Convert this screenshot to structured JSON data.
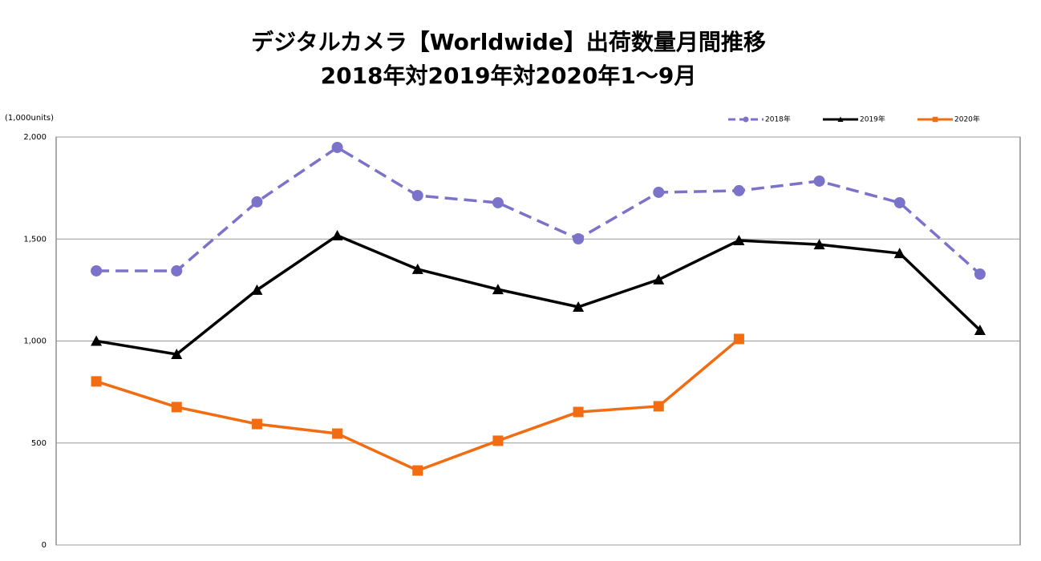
{
  "chart_data": {
    "type": "line",
    "title": "デジタルカメラ【Worldwide】出荷数量月間推移",
    "subtitle": "2018年対2019年対2020年1～9月",
    "y_label": "(1,000units)",
    "categories": [
      null,
      null,
      null,
      null,
      null,
      null,
      null,
      null,
      null,
      null,
      null,
      null
    ],
    "series": [
      {
        "name": "2018年",
        "color": "#7b72c9",
        "dash": true,
        "marker": "circle",
        "values": [
          1344,
          1344,
          1682,
          1949,
          1713,
          1678,
          1501,
          1729,
          1737,
          1784,
          1678,
          1328
        ]
      },
      {
        "name": "2019年",
        "color": "#000000",
        "dash": false,
        "marker": "triangle",
        "values": [
          1000,
          935,
          1250,
          1517,
          1352,
          1253,
          1167,
          1301,
          1493,
          1473,
          1430,
          1053
        ]
      },
      {
        "name": "2020年",
        "color": "#f26c12",
        "dash": false,
        "marker": "square",
        "values": [
          802,
          676,
          593,
          546,
          365,
          511,
          652,
          680,
          1010,
          null,
          null,
          null
        ]
      }
    ],
    "ylim": [
      0,
      2000
    ],
    "yticks": [
      0,
      500,
      {
        "value": 1000,
        "label": "1,000"
      },
      {
        "value": 1500,
        "label": "1,500"
      },
      {
        "value": 2000,
        "label": "2,000"
      }
    ],
    "grid": true,
    "legend": "top-right"
  }
}
